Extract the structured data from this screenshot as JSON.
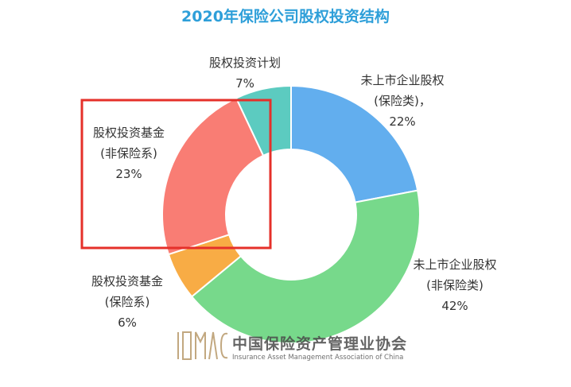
{
  "chart_data": {
    "type": "pie",
    "title": "2020年保险公司股权投资结构",
    "donut": true,
    "slices": [
      {
        "label_lines": [
          "未上市企业股权",
          "(保险类)，"
        ],
        "value": 22,
        "value_label": "22%",
        "color": "#62aeee"
      },
      {
        "label_lines": [
          "未上市企业股权",
          "(非保险类)"
        ],
        "value": 42,
        "value_label": "42%",
        "color": "#77d98b"
      },
      {
        "label_lines": [
          "股权投资基金",
          "(保险系)"
        ],
        "value": 6,
        "value_label": "6%",
        "color": "#f8ac45"
      },
      {
        "label_lines": [
          "股权投资基金",
          "(非保险系)"
        ],
        "value": 23,
        "value_label": "23%",
        "color": "#f97d74"
      },
      {
        "label_lines": [
          "股权投资计划"
        ],
        "value": 7,
        "value_label": "7%",
        "color": "#5ccbc0"
      }
    ],
    "highlight_slice_index": 3,
    "highlight_color": "#e5302a",
    "title_color": "#2e9fd9"
  },
  "watermark": {
    "logo_text": "IAMAC",
    "org_name_cn": "中国保险资产管理业协会",
    "org_name_en": "Insurance Asset Management Association of China"
  }
}
